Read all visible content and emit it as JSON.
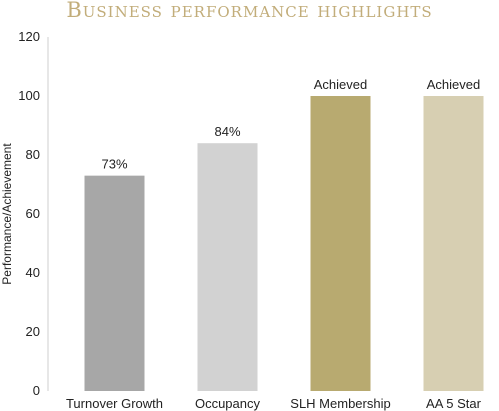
{
  "chart_data": {
    "type": "bar",
    "title": "Business performance highlights",
    "xlabel": "",
    "ylabel": "Performance/Achievement",
    "ylim": [
      0,
      120
    ],
    "yticks": [
      0,
      20,
      40,
      60,
      80,
      100,
      120
    ],
    "grid": false,
    "legend": "none",
    "categories": [
      "Turnover Growth",
      "Occupancy",
      "SLH Membership",
      "AA 5 Star"
    ],
    "values": [
      73,
      84,
      100,
      100
    ],
    "data_labels": [
      "73%",
      "84%",
      "Achieved",
      "Achieved"
    ],
    "colors": [
      "#a7a7a7",
      "#d2d2d2",
      "#b8aa70",
      "#d7cfb2"
    ],
    "title_color": "#c2ad7a"
  }
}
